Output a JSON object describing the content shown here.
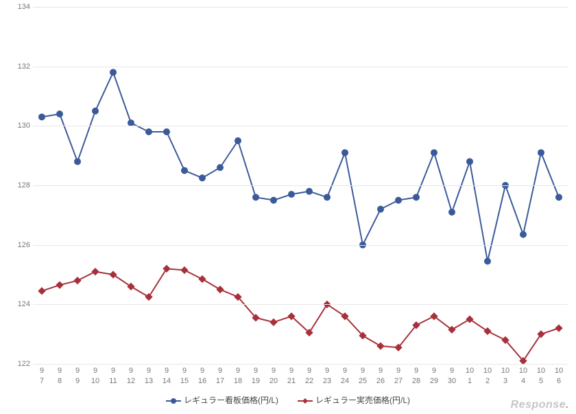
{
  "chart": {
    "type": "line",
    "background_color": "#ffffff",
    "grid_color": "#e6e6e6",
    "axis_label_color": "#777777",
    "axis_fontsize": 11,
    "ylim": [
      122,
      134
    ],
    "ytick_step": 2,
    "yticks": [
      122,
      124,
      126,
      128,
      130,
      132,
      134
    ],
    "x_labels": [
      {
        "m": "9",
        "d": "7"
      },
      {
        "m": "9",
        "d": "8"
      },
      {
        "m": "9",
        "d": "9"
      },
      {
        "m": "9",
        "d": "10"
      },
      {
        "m": "9",
        "d": "11"
      },
      {
        "m": "9",
        "d": "12"
      },
      {
        "m": "9",
        "d": "13"
      },
      {
        "m": "9",
        "d": "14"
      },
      {
        "m": "9",
        "d": "15"
      },
      {
        "m": "9",
        "d": "16"
      },
      {
        "m": "9",
        "d": "17"
      },
      {
        "m": "9",
        "d": "18"
      },
      {
        "m": "9",
        "d": "19"
      },
      {
        "m": "9",
        "d": "20"
      },
      {
        "m": "9",
        "d": "21"
      },
      {
        "m": "9",
        "d": "22"
      },
      {
        "m": "9",
        "d": "23"
      },
      {
        "m": "9",
        "d": "24"
      },
      {
        "m": "9",
        "d": "25"
      },
      {
        "m": "9",
        "d": "26"
      },
      {
        "m": "9",
        "d": "27"
      },
      {
        "m": "9",
        "d": "28"
      },
      {
        "m": "9",
        "d": "29"
      },
      {
        "m": "9",
        "d": "30"
      },
      {
        "m": "10",
        "d": "1"
      },
      {
        "m": "10",
        "d": "2"
      },
      {
        "m": "10",
        "d": "3"
      },
      {
        "m": "10",
        "d": "4"
      },
      {
        "m": "10",
        "d": "5"
      },
      {
        "m": "10",
        "d": "6"
      }
    ],
    "series": [
      {
        "key": "posted",
        "label": "レギュラー看板価格(円/L)",
        "color": "#3b5a9a",
        "line_width": 2,
        "marker": "circle",
        "marker_size": 4.5,
        "values": [
          130.3,
          130.4,
          128.8,
          130.5,
          131.8,
          130.1,
          129.8,
          129.8,
          128.5,
          128.25,
          128.6,
          129.5,
          127.6,
          127.5,
          127.7,
          127.8,
          127.6,
          129.1,
          126.0,
          127.2,
          127.5,
          127.6,
          129.1,
          127.1,
          128.8,
          125.45,
          128.0,
          126.35,
          129.1,
          127.6
        ]
      },
      {
        "key": "actual",
        "label": "レギュラー実売価格(円/L)",
        "color": "#a8303a",
        "line_width": 2,
        "marker": "diamond",
        "marker_size": 4.5,
        "values": [
          124.45,
          124.65,
          124.8,
          125.1,
          125.0,
          124.6,
          124.25,
          125.2,
          125.15,
          124.85,
          124.5,
          124.25,
          123.55,
          123.4,
          123.6,
          123.05,
          124.0,
          123.6,
          122.95,
          122.6,
          122.55,
          123.3,
          123.6,
          123.15,
          123.5,
          123.1,
          122.8,
          122.1,
          123.0,
          123.2
        ]
      }
    ],
    "legend": {
      "position": "bottom",
      "fontsize": 12,
      "text_color": "#444444"
    }
  },
  "watermark": {
    "text_before": "Response",
    "dot": ".",
    "text_after": ""
  }
}
